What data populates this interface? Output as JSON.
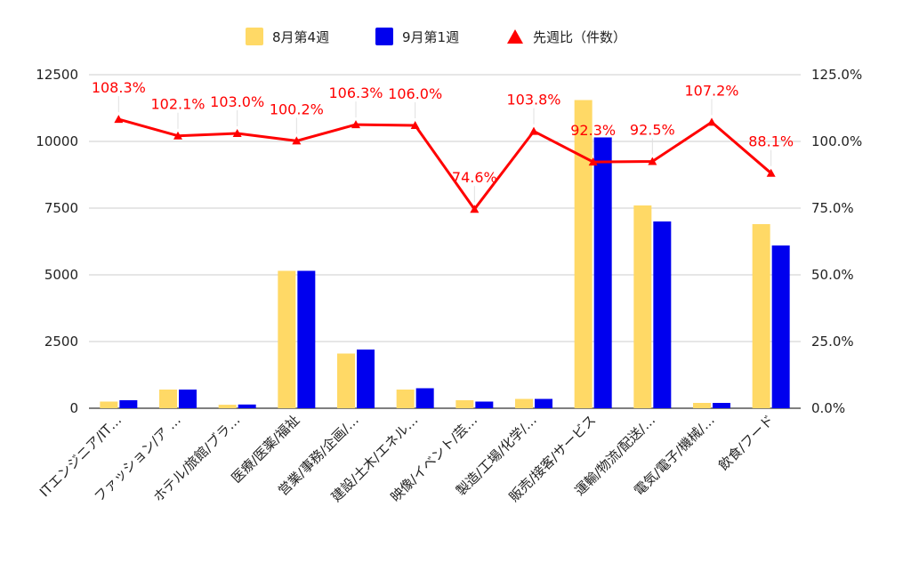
{
  "chart_data": {
    "type": "bar",
    "categories": [
      "ITエンジニア/IT…",
      "ファッション/ア …",
      "ホテル/旅館/ブラ…",
      "医療/医薬/福祉",
      "営業/事務/企画/…",
      "建設/土木/エネル…",
      "映像/イベント/芸…",
      "製造/工場/化学/…",
      "販売/接客/サービス",
      "運輸/物流/配送/…",
      "電気/電子/機械/…",
      "飲食/フード"
    ],
    "series": [
      {
        "name": "8月第4週",
        "color": "#ffd966",
        "values": [
          250,
          700,
          130,
          5150,
          2050,
          700,
          300,
          350,
          11550,
          7600,
          200,
          6900
        ]
      },
      {
        "name": "9月第1週",
        "color": "#0000ee",
        "values": [
          300,
          700,
          140,
          5150,
          2200,
          750,
          250,
          350,
          10150,
          7000,
          200,
          6100
        ]
      }
    ],
    "line_series": {
      "name": "先週比（件数）",
      "color": "#ff0000",
      "axis": "right",
      "values": [
        108.3,
        102.1,
        103.0,
        100.2,
        106.3,
        106.0,
        74.6,
        103.8,
        92.3,
        92.5,
        107.2,
        88.1
      ],
      "labels": [
        "108.3%",
        "102.1%",
        "103.0%",
        "100.2%",
        "106.3%",
        "106.0%",
        "74.6%",
        "103.8%",
        "92.3%",
        "92.5%",
        "107.2%",
        "88.1%"
      ]
    },
    "ylim_left": [
      0,
      12500
    ],
    "yticks_left": [
      "0",
      "2500",
      "5000",
      "7500",
      "10000",
      "12500"
    ],
    "ylim_right": [
      0,
      125
    ],
    "yticks_right": [
      "0.0%",
      "25.0%",
      "50.0%",
      "75.0%",
      "100.0%",
      "125.0%"
    ],
    "legend_position": "top-center",
    "grid": true
  }
}
